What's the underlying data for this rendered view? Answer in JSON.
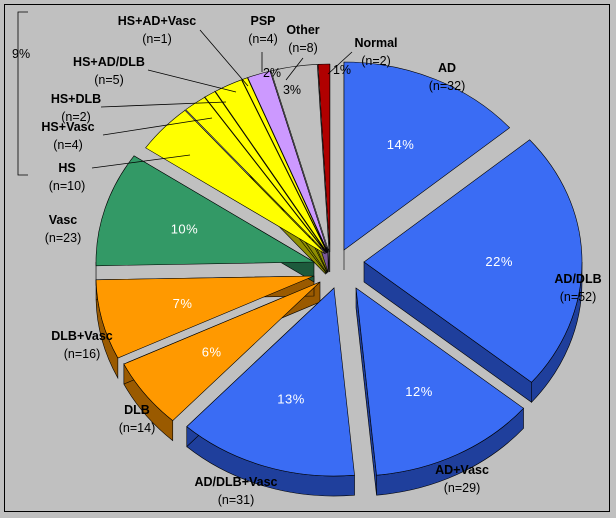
{
  "chart_data": {
    "type": "pie",
    "title": "",
    "style": "3d-exploded",
    "slices": [
      {
        "name": "AD",
        "n_label": "(n=32)",
        "value": 32,
        "pct_label": "14%",
        "color": "#3a6cf4",
        "side_color": "#1f3f9c"
      },
      {
        "name": "AD/DLB",
        "n_label": "(n=52)",
        "value": 52,
        "pct_label": "22%",
        "color": "#3a6cf4",
        "side_color": "#1f3f9c"
      },
      {
        "name": "AD+Vasc",
        "n_label": "(n=29)",
        "value": 29,
        "pct_label": "12%",
        "color": "#3a6cf4",
        "side_color": "#1f3f9c"
      },
      {
        "name": "AD/DLB+Vasc",
        "n_label": "(n=31)",
        "value": 31,
        "pct_label": "13%",
        "color": "#3a6cf4",
        "side_color": "#1f3f9c"
      },
      {
        "name": "DLB",
        "n_label": "(n=14)",
        "value": 14,
        "pct_label": "6%",
        "color": "#ff9900",
        "side_color": "#9a5a00"
      },
      {
        "name": "DLB+Vasc",
        "n_label": "(n=16)",
        "value": 16,
        "pct_label": "7%",
        "color": "#ff9900",
        "side_color": "#9a5a00"
      },
      {
        "name": "Vasc",
        "n_label": "(n=23)",
        "value": 23,
        "pct_label": "10%",
        "color": "#339966",
        "side_color": "#1d5a3c"
      },
      {
        "name": "HS",
        "n_label": "(n=10)",
        "value": 10,
        "pct_label": "",
        "color": "#ffff00",
        "side_color": "#8f8f00"
      },
      {
        "name": "HS+Vasc",
        "n_label": "(n=4)",
        "value": 4,
        "pct_label": "",
        "color": "#ffff00",
        "side_color": "#8f8f00"
      },
      {
        "name": "HS+DLB",
        "n_label": "(n=2)",
        "value": 2,
        "pct_label": "",
        "color": "#ffff00",
        "side_color": "#8f8f00"
      },
      {
        "name": "HS+AD/DLB",
        "n_label": "(n=5)",
        "value": 5,
        "pct_label": "",
        "color": "#ffff00",
        "side_color": "#8f8f00"
      },
      {
        "name": "HS+AD+Vasc",
        "n_label": "(n=1)",
        "value": 1,
        "pct_label": "",
        "color": "#ffff00",
        "side_color": "#8f8f00"
      },
      {
        "name": "PSP",
        "n_label": "(n=4)",
        "value": 4,
        "pct_label": "2%",
        "color": "#cc99ff",
        "side_color": "#7a5a99"
      },
      {
        "name": "Other",
        "n_label": "(n=8)",
        "value": 8,
        "pct_label": "3%",
        "color": "#c0c0c0",
        "side_color": "#808080"
      },
      {
        "name": "Normal",
        "n_label": "(n=2)",
        "value": 2,
        "pct_label": "1%",
        "color": "#b00000",
        "side_color": "#600000"
      }
    ],
    "bracket_label": "9%",
    "bracket_covers": [
      "HS+AD+Vasc",
      "HS+AD/DLB",
      "HS+DLB",
      "HS+Vasc",
      "HS"
    ]
  }
}
